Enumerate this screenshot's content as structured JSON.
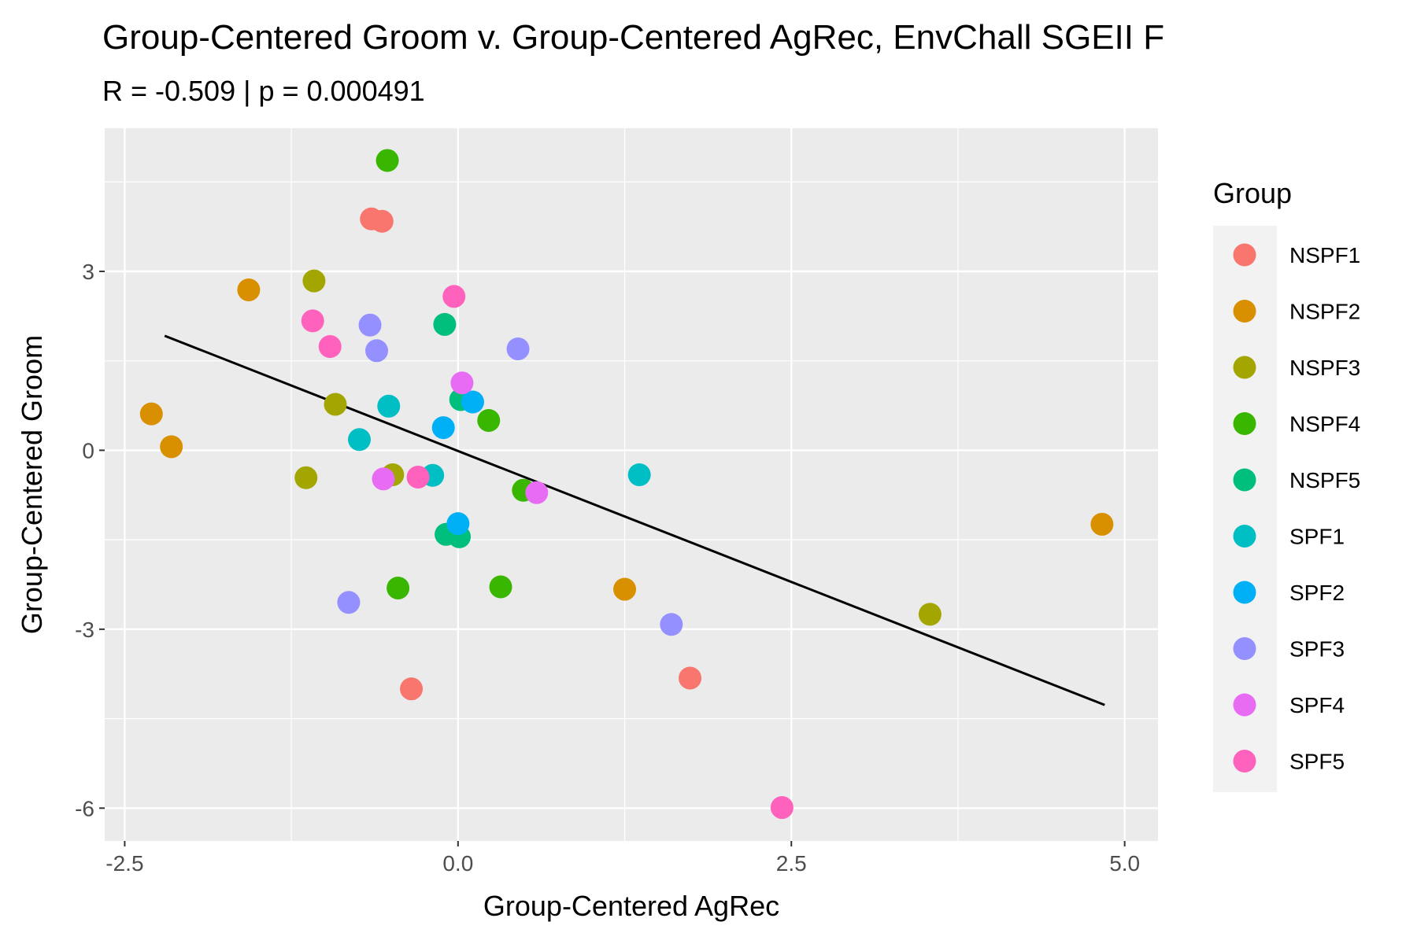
{
  "chart_data": {
    "type": "scatter",
    "title": "Group-Centered Groom v. Group-Centered AgRec, EnvChall SGEII F",
    "subtitle": "R = -0.509 | p = 0.000491",
    "xlabel": "Group-Centered AgRec",
    "ylabel": "Group-Centered Groom",
    "xlim": [
      -2.65,
      5.25
    ],
    "ylim": [
      -6.55,
      5.4
    ],
    "x_ticks": [
      -2.5,
      0.0,
      2.5,
      5.0
    ],
    "x_tick_labels": [
      "-2.5",
      "0.0",
      "2.5",
      "5.0"
    ],
    "y_ticks": [
      -6,
      -3,
      0,
      3
    ],
    "y_tick_labels": [
      "-6",
      "-3",
      "0",
      "3"
    ],
    "grid": true,
    "legend_position": "right",
    "legend_title": "Group",
    "fit_line": {
      "x": [
        -2.2,
        4.85
      ],
      "y": [
        1.92,
        -4.27
      ],
      "color": "#000000"
    },
    "series": [
      {
        "name": "NSPF1",
        "color": "#F8766D",
        "points": [
          [
            -0.65,
            3.88
          ],
          [
            -0.57,
            3.84
          ],
          [
            -0.35,
            -4.0
          ],
          [
            1.74,
            -3.82
          ]
        ]
      },
      {
        "name": "NSPF2",
        "color": "#D89000",
        "points": [
          [
            -1.57,
            2.69
          ],
          [
            -2.3,
            0.61
          ],
          [
            -2.15,
            0.06
          ],
          [
            1.25,
            -2.33
          ],
          [
            4.83,
            -1.24
          ]
        ]
      },
      {
        "name": "NSPF3",
        "color": "#A3A500",
        "points": [
          [
            -1.08,
            2.84
          ],
          [
            -0.92,
            0.77
          ],
          [
            -1.14,
            -0.46
          ],
          [
            -0.49,
            -0.41
          ],
          [
            3.54,
            -2.75
          ]
        ]
      },
      {
        "name": "NSPF4",
        "color": "#39B600",
        "points": [
          [
            -0.53,
            4.86
          ],
          [
            0.23,
            0.5
          ],
          [
            0.49,
            -0.67
          ],
          [
            -0.45,
            -2.31
          ],
          [
            0.32,
            -2.29
          ]
        ]
      },
      {
        "name": "NSPF5",
        "color": "#00BF7D",
        "points": [
          [
            -0.1,
            2.11
          ],
          [
            0.02,
            0.85
          ],
          [
            -0.09,
            -1.41
          ],
          [
            0.01,
            -1.45
          ]
        ]
      },
      {
        "name": "SPF1",
        "color": "#00BFC4",
        "points": [
          [
            -0.52,
            0.74
          ],
          [
            -0.74,
            0.18
          ],
          [
            -0.19,
            -0.42
          ],
          [
            1.36,
            -0.41
          ]
        ]
      },
      {
        "name": "SPF2",
        "color": "#00B0F6",
        "points": [
          [
            0.11,
            0.81
          ],
          [
            -0.11,
            0.38
          ],
          [
            0.0,
            -1.23
          ]
        ]
      },
      {
        "name": "SPF3",
        "color": "#9590FF",
        "points": [
          [
            -0.66,
            2.1
          ],
          [
            -0.61,
            1.67
          ],
          [
            0.45,
            1.7
          ],
          [
            -0.82,
            -2.55
          ],
          [
            1.6,
            -2.92
          ]
        ]
      },
      {
        "name": "SPF4",
        "color": "#E76BF3",
        "points": [
          [
            0.03,
            1.13
          ],
          [
            -0.56,
            -0.48
          ],
          [
            0.59,
            -0.71
          ]
        ]
      },
      {
        "name": "SPF5",
        "color": "#FF62BC",
        "points": [
          [
            -0.03,
            2.58
          ],
          [
            -1.09,
            2.17
          ],
          [
            -0.96,
            1.74
          ],
          [
            -0.3,
            -0.45
          ],
          [
            2.43,
            -5.99
          ]
        ]
      }
    ]
  }
}
